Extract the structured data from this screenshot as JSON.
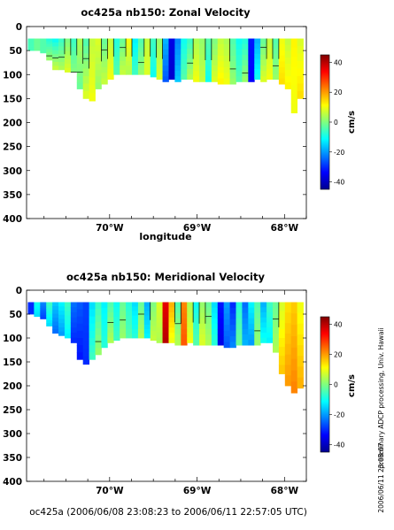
{
  "chart_data": [
    {
      "type": "heatmap",
      "title": "oc425a nb150: Zonal Velocity",
      "xlabel": "longitude",
      "ylabel": "",
      "x_tick_labels": [
        "70°W",
        "69°W",
        "68°W"
      ],
      "x_tick_values": [
        -70,
        -69,
        -68
      ],
      "xlim": [
        -70.95,
        -67.75
      ],
      "y_tick_labels": [
        "0",
        "50",
        "100",
        "150",
        "200",
        "250",
        "300",
        "350",
        "400"
      ],
      "y_tick_values": [
        0,
        50,
        100,
        150,
        200,
        250,
        300,
        350,
        400
      ],
      "ylim": [
        400,
        0
      ],
      "colorbar": {
        "label": "cm/s",
        "range": [
          -45,
          45
        ],
        "ticks": [
          40,
          20,
          0,
          -20,
          -40
        ]
      },
      "columns": [
        {
          "lon": -70.9,
          "depth": 50,
          "profile": [
            -5,
            -5
          ]
        },
        {
          "lon": -70.83,
          "depth": 50,
          "profile": [
            -2,
            -2
          ]
        },
        {
          "lon": -70.76,
          "depth": 55,
          "profile": [
            -4,
            -4
          ]
        },
        {
          "lon": -70.69,
          "depth": 70,
          "profile": [
            -8,
            2
          ]
        },
        {
          "lon": -70.62,
          "depth": 90,
          "profile": [
            -10,
            6
          ]
        },
        {
          "lon": -70.55,
          "depth": 90,
          "profile": [
            -6,
            4
          ]
        },
        {
          "lon": -70.48,
          "depth": 95,
          "profile": [
            0,
            8
          ]
        },
        {
          "lon": -70.41,
          "depth": 95,
          "profile": [
            -6,
            0
          ]
        },
        {
          "lon": -70.34,
          "depth": 130,
          "profile": [
            4,
            -2
          ]
        },
        {
          "lon": -70.27,
          "depth": 150,
          "profile": [
            -4,
            8
          ]
        },
        {
          "lon": -70.2,
          "depth": 155,
          "profile": [
            6,
            10
          ]
        },
        {
          "lon": -70.13,
          "depth": 130,
          "profile": [
            8,
            2
          ]
        },
        {
          "lon": -70.06,
          "depth": 120,
          "profile": [
            -2,
            6
          ]
        },
        {
          "lon": -69.99,
          "depth": 110,
          "profile": [
            6,
            10
          ]
        },
        {
          "lon": -69.92,
          "depth": 100,
          "profile": [
            -8,
            -4
          ]
        },
        {
          "lon": -69.85,
          "depth": 100,
          "profile": [
            -2,
            6
          ]
        },
        {
          "lon": -69.78,
          "depth": 100,
          "profile": [
            10,
            4
          ]
        },
        {
          "lon": -69.71,
          "depth": 100,
          "profile": [
            -12,
            -6
          ]
        },
        {
          "lon": -69.64,
          "depth": 100,
          "profile": [
            -4,
            2
          ]
        },
        {
          "lon": -69.57,
          "depth": 100,
          "profile": [
            6,
            8
          ]
        },
        {
          "lon": -69.5,
          "depth": 105,
          "profile": [
            -6,
            -10
          ]
        },
        {
          "lon": -69.43,
          "depth": 110,
          "profile": [
            2,
            8
          ]
        },
        {
          "lon": -69.36,
          "depth": 115,
          "profile": [
            -18,
            -26
          ]
        },
        {
          "lon": -69.29,
          "depth": 110,
          "profile": [
            -36,
            -38
          ]
        },
        {
          "lon": -69.22,
          "depth": 115,
          "profile": [
            -22,
            -16
          ]
        },
        {
          "lon": -69.15,
          "depth": 110,
          "profile": [
            -10,
            -4
          ]
        },
        {
          "lon": -69.08,
          "depth": 110,
          "profile": [
            -6,
            4
          ]
        },
        {
          "lon": -69.01,
          "depth": 115,
          "profile": [
            4,
            10
          ]
        },
        {
          "lon": -68.94,
          "depth": 115,
          "profile": [
            2,
            6
          ]
        },
        {
          "lon": -68.87,
          "depth": 115,
          "profile": [
            -4,
            -10
          ]
        },
        {
          "lon": -68.8,
          "depth": 115,
          "profile": [
            0,
            8
          ]
        },
        {
          "lon": -68.73,
          "depth": 120,
          "profile": [
            6,
            12
          ]
        },
        {
          "lon": -68.66,
          "depth": 120,
          "profile": [
            4,
            10
          ]
        },
        {
          "lon": -68.59,
          "depth": 120,
          "profile": [
            -4,
            2
          ]
        },
        {
          "lon": -68.52,
          "depth": 115,
          "profile": [
            -10,
            -4
          ]
        },
        {
          "lon": -68.45,
          "depth": 115,
          "profile": [
            -8,
            2
          ]
        },
        {
          "lon": -68.38,
          "depth": 115,
          "profile": [
            -32,
            -34
          ]
        },
        {
          "lon": -68.31,
          "depth": 110,
          "profile": [
            -18,
            -10
          ]
        },
        {
          "lon": -68.24,
          "depth": 115,
          "profile": [
            -2,
            8
          ]
        },
        {
          "lon": -68.17,
          "depth": 110,
          "profile": [
            6,
            10
          ]
        },
        {
          "lon": -68.1,
          "depth": 110,
          "profile": [
            -4,
            2
          ]
        },
        {
          "lon": -68.03,
          "depth": 120,
          "profile": [
            10,
            14
          ]
        },
        {
          "lon": -67.96,
          "depth": 130,
          "profile": [
            6,
            12
          ]
        },
        {
          "lon": -67.89,
          "depth": 180,
          "profile": [
            12,
            10
          ]
        },
        {
          "lon": -67.82,
          "depth": 150,
          "profile": [
            8,
            14
          ]
        }
      ]
    },
    {
      "type": "heatmap",
      "title": "oc425a nb150: Meridional Velocity",
      "xlabel": "",
      "ylabel": "",
      "x_tick_labels": [
        "70°W",
        "69°W",
        "68°W"
      ],
      "x_tick_values": [
        -70,
        -69,
        -68
      ],
      "xlim": [
        -70.95,
        -67.75
      ],
      "y_tick_labels": [
        "0",
        "50",
        "100",
        "150",
        "200",
        "250",
        "300",
        "350",
        "400"
      ],
      "y_tick_values": [
        0,
        50,
        100,
        150,
        200,
        250,
        300,
        350,
        400
      ],
      "ylim": [
        400,
        0
      ],
      "colorbar": {
        "label": "cm/s",
        "range": [
          -45,
          45
        ],
        "ticks": [
          40,
          20,
          0,
          -20,
          -40
        ]
      },
      "columns": [
        {
          "lon": -70.9,
          "depth": 50,
          "profile": [
            -30,
            -30
          ]
        },
        {
          "lon": -70.83,
          "depth": 55,
          "profile": [
            -10,
            -14
          ]
        },
        {
          "lon": -70.76,
          "depth": 60,
          "profile": [
            -22,
            -28
          ]
        },
        {
          "lon": -70.69,
          "depth": 75,
          "profile": [
            -6,
            -14
          ]
        },
        {
          "lon": -70.62,
          "depth": 90,
          "profile": [
            -16,
            -24
          ]
        },
        {
          "lon": -70.55,
          "depth": 95,
          "profile": [
            -12,
            -20
          ]
        },
        {
          "lon": -70.48,
          "depth": 100,
          "profile": [
            -6,
            -12
          ]
        },
        {
          "lon": -70.41,
          "depth": 110,
          "profile": [
            -24,
            -30
          ]
        },
        {
          "lon": -70.34,
          "depth": 145,
          "profile": [
            -26,
            -32
          ]
        },
        {
          "lon": -70.27,
          "depth": 155,
          "profile": [
            -28,
            -30
          ]
        },
        {
          "lon": -70.2,
          "depth": 145,
          "profile": [
            -14,
            -6
          ]
        },
        {
          "lon": -70.13,
          "depth": 135,
          "profile": [
            -6,
            2
          ]
        },
        {
          "lon": -70.06,
          "depth": 120,
          "profile": [
            -12,
            -8
          ]
        },
        {
          "lon": -69.99,
          "depth": 110,
          "profile": [
            -4,
            4
          ]
        },
        {
          "lon": -69.92,
          "depth": 105,
          "profile": [
            -10,
            -6
          ]
        },
        {
          "lon": -69.85,
          "depth": 100,
          "profile": [
            -2,
            2
          ]
        },
        {
          "lon": -69.78,
          "depth": 100,
          "profile": [
            -8,
            -4
          ]
        },
        {
          "lon": -69.71,
          "depth": 100,
          "profile": [
            -14,
            -8
          ]
        },
        {
          "lon": -69.64,
          "depth": 100,
          "profile": [
            -2,
            4
          ]
        },
        {
          "lon": -69.57,
          "depth": 100,
          "profile": [
            -18,
            -12
          ]
        },
        {
          "lon": -69.5,
          "depth": 105,
          "profile": [
            0,
            6
          ]
        },
        {
          "lon": -69.43,
          "depth": 110,
          "profile": [
            8,
            4
          ]
        },
        {
          "lon": -69.36,
          "depth": 110,
          "profile": [
            36,
            40
          ]
        },
        {
          "lon": -69.29,
          "depth": 110,
          "profile": [
            18,
            10
          ]
        },
        {
          "lon": -69.22,
          "depth": 115,
          "profile": [
            -4,
            4
          ]
        },
        {
          "lon": -69.15,
          "depth": 115,
          "profile": [
            22,
            26
          ]
        },
        {
          "lon": -69.08,
          "depth": 110,
          "profile": [
            4,
            10
          ]
        },
        {
          "lon": -69.01,
          "depth": 115,
          "profile": [
            -10,
            -4
          ]
        },
        {
          "lon": -68.94,
          "depth": 115,
          "profile": [
            2,
            8
          ]
        },
        {
          "lon": -68.87,
          "depth": 115,
          "profile": [
            -2,
            4
          ]
        },
        {
          "lon": -68.8,
          "depth": 115,
          "profile": [
            -14,
            -8
          ]
        },
        {
          "lon": -68.73,
          "depth": 115,
          "profile": [
            -32,
            -36
          ]
        },
        {
          "lon": -68.66,
          "depth": 120,
          "profile": [
            -20,
            -26
          ]
        },
        {
          "lon": -68.59,
          "depth": 120,
          "profile": [
            -30,
            -22
          ]
        },
        {
          "lon": -68.52,
          "depth": 115,
          "profile": [
            -8,
            -2
          ]
        },
        {
          "lon": -68.45,
          "depth": 115,
          "profile": [
            -24,
            -18
          ]
        },
        {
          "lon": -68.38,
          "depth": 115,
          "profile": [
            -12,
            -20
          ]
        },
        {
          "lon": -68.31,
          "depth": 115,
          "profile": [
            -4,
            2
          ]
        },
        {
          "lon": -68.24,
          "depth": 110,
          "profile": [
            -18,
            -10
          ]
        },
        {
          "lon": -68.17,
          "depth": 110,
          "profile": [
            -6,
            -12
          ]
        },
        {
          "lon": -68.1,
          "depth": 130,
          "profile": [
            -2,
            4
          ]
        },
        {
          "lon": -68.03,
          "depth": 175,
          "profile": [
            8,
            16
          ]
        },
        {
          "lon": -67.96,
          "depth": 200,
          "profile": [
            14,
            20
          ]
        },
        {
          "lon": -67.89,
          "depth": 215,
          "profile": [
            16,
            22
          ]
        },
        {
          "lon": -67.82,
          "depth": 205,
          "profile": [
            10,
            18
          ]
        }
      ]
    }
  ],
  "footer_text": "oc425a (2006/06/08 23:08:23 to 2006/06/11 22:57:05 UTC)",
  "side_text_processing": "preliminary ADCP processing,   Univ. Hawaii",
  "side_text_timestamp": "2006/06/11 23:08:07"
}
